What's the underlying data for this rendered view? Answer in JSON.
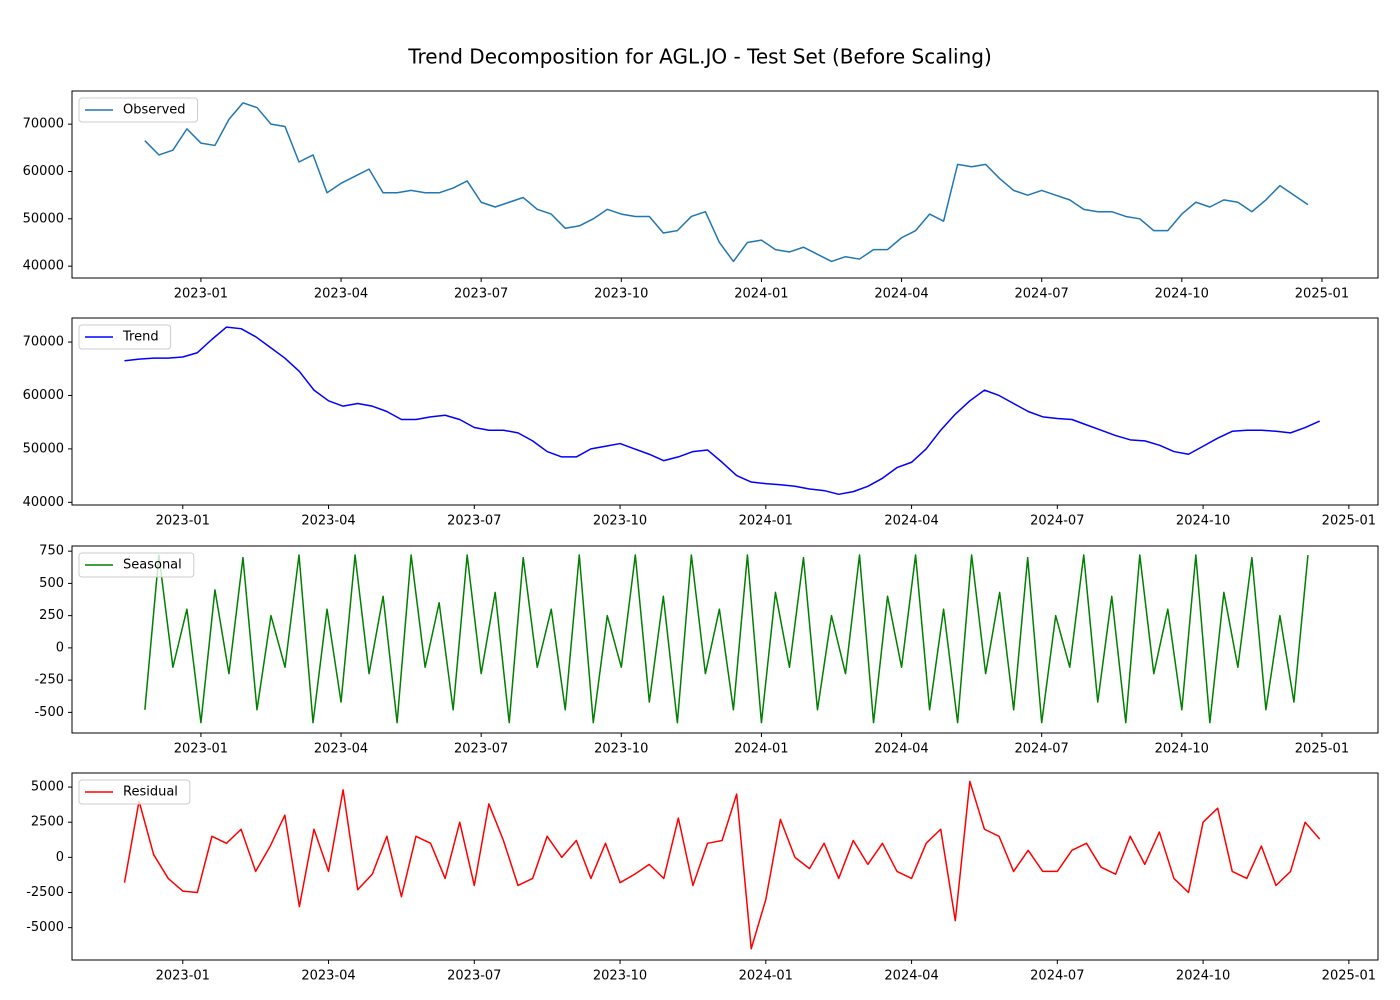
{
  "title": "Trend Decomposition for AGL.JO - Test Set (Before Scaling)",
  "chart_data": [
    {
      "type": "line",
      "legend": "upper left",
      "x": [
        2022.9,
        2022.925,
        2022.95,
        2022.975,
        2023.0,
        2023.025,
        2023.05,
        2023.075,
        2023.1,
        2023.125,
        2023.15,
        2023.175,
        2023.2,
        2023.225,
        2023.25,
        2023.275,
        2023.3,
        2023.325,
        2023.35,
        2023.375,
        2023.4,
        2023.425,
        2023.45,
        2023.475,
        2023.5,
        2023.525,
        2023.55,
        2023.575,
        2023.6,
        2023.625,
        2023.65,
        2023.675,
        2023.7,
        2023.725,
        2023.75,
        2023.775,
        2023.8,
        2023.825,
        2023.85,
        2023.875,
        2023.9,
        2023.925,
        2023.95,
        2023.975,
        2024.0,
        2024.025,
        2024.05,
        2024.075,
        2024.1,
        2024.125,
        2024.15,
        2024.175,
        2024.2,
        2024.225,
        2024.25,
        2024.275,
        2024.3,
        2024.325,
        2024.35,
        2024.375,
        2024.4,
        2024.425,
        2024.45,
        2024.475,
        2024.5,
        2024.525,
        2024.55,
        2024.575,
        2024.6,
        2024.625,
        2024.65,
        2024.675,
        2024.7,
        2024.725,
        2024.75,
        2024.775,
        2024.8,
        2024.825,
        2024.85,
        2024.875,
        2024.9,
        2024.925,
        2024.95,
        2024.975
      ],
      "series": [
        {
          "name": "Observed",
          "color": "#1f77b4",
          "values": [
            66500,
            63500,
            64500,
            69000,
            66000,
            65500,
            71000,
            74500,
            73500,
            70000,
            69500,
            62000,
            63500,
            55500,
            57500,
            59000,
            60500,
            55500,
            55500,
            56000,
            55500,
            55500,
            56500,
            58000,
            53500,
            52500,
            53500,
            54500,
            52000,
            51000,
            48000,
            48500,
            50000,
            52000,
            51000,
            50500,
            50500,
            47000,
            47500,
            50500,
            51500,
            45000,
            41000,
            45000,
            45500,
            43500,
            43000,
            44000,
            42500,
            41000,
            42000,
            41500,
            43500,
            43500,
            46000,
            47500,
            51000,
            49500,
            61500,
            61000,
            61500,
            58500,
            56000,
            55000,
            56000,
            55000,
            54000,
            52000,
            51500,
            51500,
            50500,
            50000,
            47500,
            47500,
            51000,
            53500,
            52500,
            54000,
            53500,
            51500,
            54000,
            57000,
            55000,
            53000
          ]
        }
      ],
      "xlim": [
        2022.77,
        2025.1
      ],
      "ylim": [
        37500,
        77000
      ],
      "xticks": [
        {
          "value": 2023.0,
          "label": "2023-01"
        },
        {
          "value": 2023.25,
          "label": "2023-04"
        },
        {
          "value": 2023.5,
          "label": "2023-07"
        },
        {
          "value": 2023.75,
          "label": "2023-10"
        },
        {
          "value": 2024.0,
          "label": "2024-01"
        },
        {
          "value": 2024.25,
          "label": "2024-04"
        },
        {
          "value": 2024.5,
          "label": "2024-07"
        },
        {
          "value": 2024.75,
          "label": "2024-10"
        },
        {
          "value": 2025.0,
          "label": "2025-01"
        }
      ],
      "yticks": [
        40000,
        50000,
        60000,
        70000
      ]
    },
    {
      "type": "line",
      "legend": "upper left",
      "x": [
        2022.9,
        2022.925,
        2022.95,
        2022.975,
        2023.0,
        2023.025,
        2023.05,
        2023.075,
        2023.1,
        2023.125,
        2023.15,
        2023.175,
        2023.2,
        2023.225,
        2023.25,
        2023.275,
        2023.3,
        2023.325,
        2023.35,
        2023.375,
        2023.4,
        2023.425,
        2023.45,
        2023.475,
        2023.5,
        2023.525,
        2023.55,
        2023.575,
        2023.6,
        2023.625,
        2023.65,
        2023.675,
        2023.7,
        2023.725,
        2023.75,
        2023.775,
        2023.8,
        2023.825,
        2023.85,
        2023.875,
        2023.9,
        2023.925,
        2023.95,
        2023.975,
        2024.0,
        2024.025,
        2024.05,
        2024.075,
        2024.1,
        2024.125,
        2024.15,
        2024.175,
        2024.2,
        2024.225,
        2024.25,
        2024.275,
        2024.3,
        2024.325,
        2024.35,
        2024.375,
        2024.4,
        2024.425,
        2024.45,
        2024.475,
        2024.5,
        2024.525,
        2024.55,
        2024.575,
        2024.6,
        2024.625,
        2024.65,
        2024.675,
        2024.7,
        2024.725,
        2024.75,
        2024.775,
        2024.8,
        2024.825,
        2024.85,
        2024.875,
        2024.9,
        2024.925,
        2024.95
      ],
      "series": [
        {
          "name": "Trend",
          "color": "#0000ff",
          "values": [
            66500,
            66800,
            67000,
            67000,
            67200,
            68000,
            70500,
            72800,
            72500,
            71000,
            69000,
            67000,
            64500,
            61000,
            59000,
            58000,
            58500,
            58000,
            57000,
            55500,
            55500,
            56000,
            56300,
            55500,
            54000,
            53500,
            53500,
            53000,
            51500,
            49500,
            48500,
            48500,
            50000,
            50500,
            51000,
            50000,
            49000,
            47800,
            48500,
            49500,
            49800,
            47500,
            45000,
            43800,
            43500,
            43300,
            43000,
            42500,
            42200,
            41500,
            42000,
            43000,
            44500,
            46500,
            47500,
            50000,
            53500,
            56500,
            59000,
            61000,
            60000,
            58500,
            57000,
            56000,
            55700,
            55500,
            54500,
            53500,
            52500,
            51700,
            51500,
            50700,
            49500,
            49000,
            50500,
            52000,
            53300,
            53500,
            53500,
            53300,
            53000,
            54000,
            55200
          ]
        }
      ],
      "xlim": [
        2022.81,
        2025.05
      ],
      "ylim": [
        39500,
        74500
      ],
      "xticks": [
        {
          "value": 2023.0,
          "label": "2023-01"
        },
        {
          "value": 2023.25,
          "label": "2023-04"
        },
        {
          "value": 2023.5,
          "label": "2023-07"
        },
        {
          "value": 2023.75,
          "label": "2023-10"
        },
        {
          "value": 2024.0,
          "label": "2024-01"
        },
        {
          "value": 2024.25,
          "label": "2024-04"
        },
        {
          "value": 2024.5,
          "label": "2024-07"
        },
        {
          "value": 2024.75,
          "label": "2024-10"
        },
        {
          "value": 2025.0,
          "label": "2025-01"
        }
      ],
      "yticks": [
        40000,
        50000,
        60000,
        70000
      ]
    },
    {
      "type": "line",
      "legend": "upper left",
      "x": [
        2022.9,
        2022.925,
        2022.95,
        2022.975,
        2023.0,
        2023.025,
        2023.05,
        2023.075,
        2023.1,
        2023.125,
        2023.15,
        2023.175,
        2023.2,
        2023.225,
        2023.25,
        2023.275,
        2023.3,
        2023.325,
        2023.35,
        2023.375,
        2023.4,
        2023.425,
        2023.45,
        2023.475,
        2023.5,
        2023.525,
        2023.55,
        2023.575,
        2023.6,
        2023.625,
        2023.65,
        2023.675,
        2023.7,
        2023.725,
        2023.75,
        2023.775,
        2023.8,
        2023.825,
        2023.85,
        2023.875,
        2023.9,
        2023.925,
        2023.95,
        2023.975,
        2024.0,
        2024.025,
        2024.05,
        2024.075,
        2024.1,
        2024.125,
        2024.15,
        2024.175,
        2024.2,
        2024.225,
        2024.25,
        2024.275,
        2024.3,
        2024.325,
        2024.35,
        2024.375,
        2024.4,
        2024.425,
        2024.45,
        2024.475,
        2024.5,
        2024.525,
        2024.55,
        2024.575,
        2024.6,
        2024.625,
        2024.65,
        2024.675,
        2024.7,
        2024.725,
        2024.75,
        2024.775,
        2024.8,
        2024.825,
        2024.85,
        2024.875,
        2024.9,
        2024.925,
        2024.95,
        2024.975
      ],
      "series": [
        {
          "name": "Seasonal",
          "color": "#008000",
          "values": [
            -480,
            720,
            -150,
            300,
            -580,
            450,
            -200,
            700,
            -480,
            250,
            -150,
            720,
            -580,
            300,
            -420,
            720,
            -200,
            400,
            -580,
            720,
            -150,
            350,
            -480,
            720,
            -200,
            430,
            -580,
            700,
            -150,
            300,
            -480,
            720,
            -580,
            250,
            -150,
            720,
            -420,
            400,
            -580,
            720,
            -200,
            300,
            -480,
            720,
            -580,
            430,
            -150,
            700,
            -480,
            250,
            -200,
            720,
            -580,
            400,
            -150,
            720,
            -480,
            300,
            -580,
            720,
            -200,
            430,
            -480,
            700,
            -580,
            250,
            -150,
            720,
            -420,
            400,
            -580,
            720,
            -200,
            300,
            -480,
            720,
            -580,
            430,
            -150,
            700,
            -480,
            250,
            -420,
            720
          ]
        }
      ],
      "xlim": [
        2022.77,
        2025.1
      ],
      "ylim": [
        -660,
        790
      ],
      "xticks": [
        {
          "value": 2023.0,
          "label": "2023-01"
        },
        {
          "value": 2023.25,
          "label": "2023-04"
        },
        {
          "value": 2023.5,
          "label": "2023-07"
        },
        {
          "value": 2023.75,
          "label": "2023-10"
        },
        {
          "value": 2024.0,
          "label": "2024-01"
        },
        {
          "value": 2024.25,
          "label": "2024-04"
        },
        {
          "value": 2024.5,
          "label": "2024-07"
        },
        {
          "value": 2024.75,
          "label": "2024-10"
        },
        {
          "value": 2025.0,
          "label": "2025-01"
        }
      ],
      "yticks": [
        -500,
        -250,
        0,
        250,
        500,
        750
      ]
    },
    {
      "type": "line",
      "legend": "upper left",
      "x": [
        2022.9,
        2022.925,
        2022.95,
        2022.975,
        2023.0,
        2023.025,
        2023.05,
        2023.075,
        2023.1,
        2023.125,
        2023.15,
        2023.175,
        2023.2,
        2023.225,
        2023.25,
        2023.275,
        2023.3,
        2023.325,
        2023.35,
        2023.375,
        2023.4,
        2023.425,
        2023.45,
        2023.475,
        2023.5,
        2023.525,
        2023.55,
        2023.575,
        2023.6,
        2023.625,
        2023.65,
        2023.675,
        2023.7,
        2023.725,
        2023.75,
        2023.775,
        2023.8,
        2023.825,
        2023.85,
        2023.875,
        2023.9,
        2023.925,
        2023.95,
        2023.975,
        2024.0,
        2024.025,
        2024.05,
        2024.075,
        2024.1,
        2024.125,
        2024.15,
        2024.175,
        2024.2,
        2024.225,
        2024.25,
        2024.275,
        2024.3,
        2024.325,
        2024.35,
        2024.375,
        2024.4,
        2024.425,
        2024.45,
        2024.475,
        2024.5,
        2024.525,
        2024.55,
        2024.575,
        2024.6,
        2024.625,
        2024.65,
        2024.675,
        2024.7,
        2024.725,
        2024.75,
        2024.775,
        2024.8,
        2024.825,
        2024.85,
        2024.875,
        2024.9,
        2024.925,
        2024.95
      ],
      "series": [
        {
          "name": "Residual",
          "color": "#ff0000",
          "values": [
            -1800,
            4000,
            200,
            -1500,
            -2400,
            -2500,
            1500,
            1000,
            2000,
            -1000,
            800,
            3000,
            -3500,
            2000,
            -1000,
            4800,
            -2300,
            -1200,
            1500,
            -2800,
            1500,
            1000,
            -1500,
            2500,
            -2000,
            3800,
            1200,
            -2000,
            -1500,
            1500,
            0,
            1200,
            -1500,
            1000,
            -1800,
            -1200,
            -500,
            -1500,
            2800,
            -2000,
            1000,
            1200,
            4500,
            -6500,
            -3000,
            2700,
            0,
            -800,
            1000,
            -1500,
            1200,
            -500,
            1000,
            -1000,
            -1500,
            1000,
            2000,
            -4500,
            5400,
            2000,
            1500,
            -1000,
            500,
            -1000,
            -1000,
            500,
            1000,
            -700,
            -1200,
            1500,
            -500,
            1800,
            -1500,
            -2500,
            2500,
            3500,
            -1000,
            -1500,
            800,
            -2000,
            -1000,
            2500,
            1300
          ]
        }
      ],
      "xlim": [
        2022.81,
        2025.05
      ],
      "ylim": [
        -7300,
        6000
      ],
      "xticks": [
        {
          "value": 2023.0,
          "label": "2023-01"
        },
        {
          "value": 2023.25,
          "label": "2023-04"
        },
        {
          "value": 2023.5,
          "label": "2023-07"
        },
        {
          "value": 2023.75,
          "label": "2023-10"
        },
        {
          "value": 2024.0,
          "label": "2024-01"
        },
        {
          "value": 2024.25,
          "label": "2024-04"
        },
        {
          "value": 2024.5,
          "label": "2024-07"
        },
        {
          "value": 2024.75,
          "label": "2024-10"
        },
        {
          "value": 2025.0,
          "label": "2025-01"
        }
      ],
      "yticks": [
        -5000,
        -2500,
        0,
        2500,
        5000
      ]
    }
  ]
}
